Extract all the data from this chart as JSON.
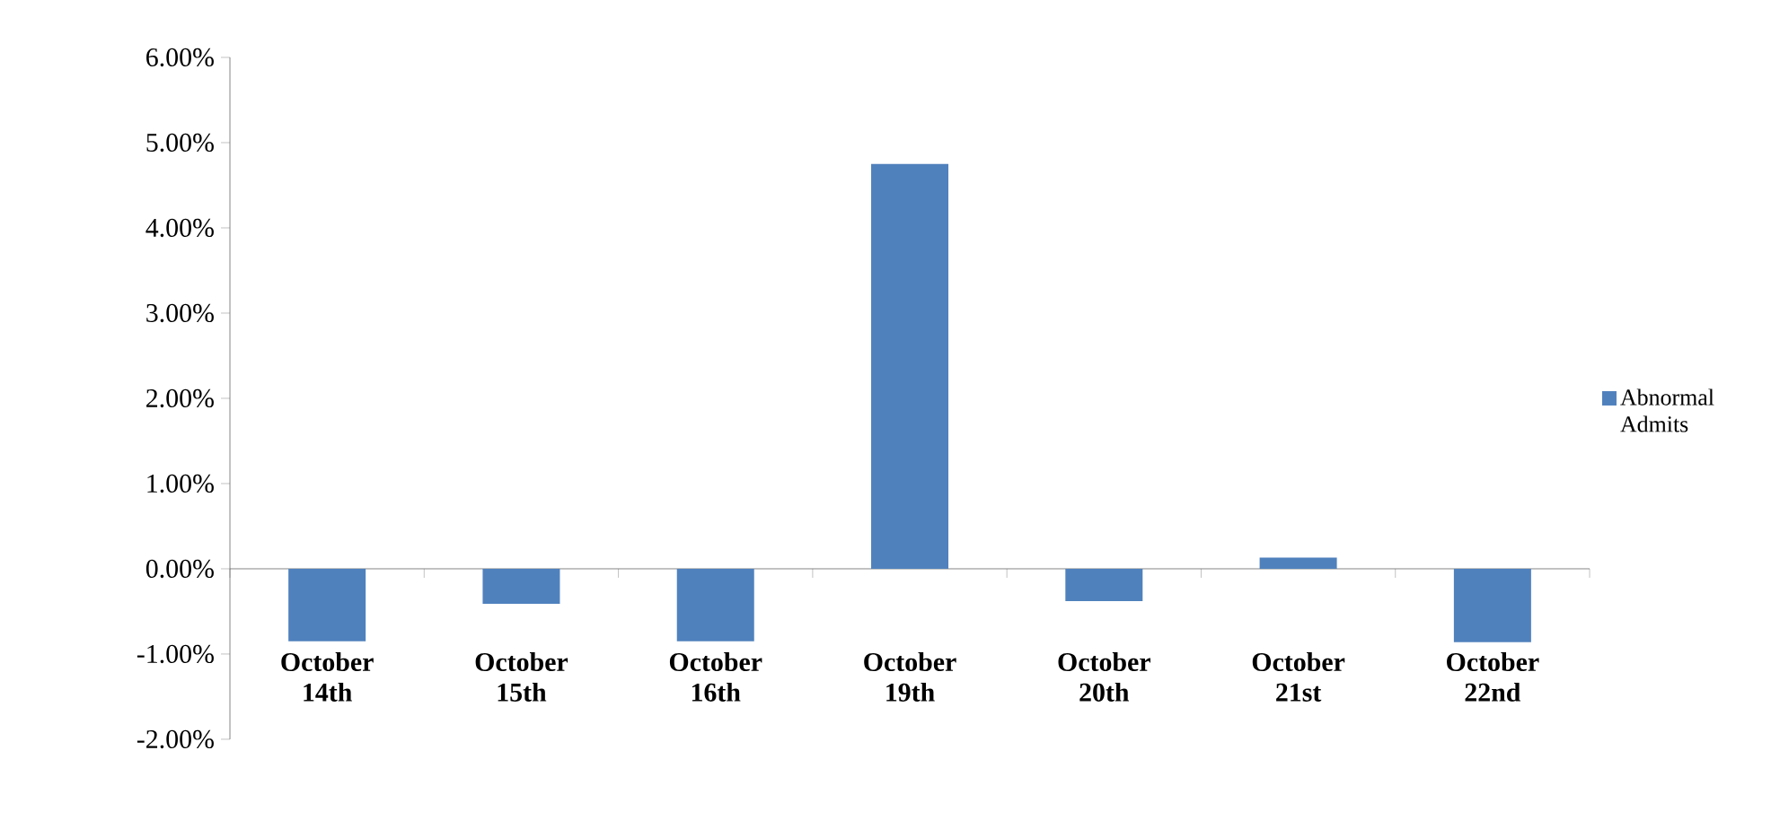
{
  "chart_data": {
    "type": "bar",
    "categories": [
      "October 14th",
      "October 15th",
      "October 16th",
      "October 19th",
      "October 20th",
      "October 21st",
      "October 22nd"
    ],
    "series": [
      {
        "name": "Abnormal Admits",
        "color": "#4f81bd",
        "values": [
          -0.85,
          -0.41,
          -0.85,
          4.75,
          -0.38,
          0.13,
          -0.86
        ]
      }
    ],
    "ylim": [
      -2,
      6
    ],
    "yticks": [
      {
        "value": -2,
        "label": "-2.00%"
      },
      {
        "value": -1,
        "label": "-1.00%"
      },
      {
        "value": 0,
        "label": "0.00%"
      },
      {
        "value": 1,
        "label": "1.00%"
      },
      {
        "value": 2,
        "label": "2.00%"
      },
      {
        "value": 3,
        "label": "3.00%"
      },
      {
        "value": 4,
        "label": "4.00%"
      },
      {
        "value": 5,
        "label": "5.00%"
      },
      {
        "value": 6,
        "label": "6.00%"
      }
    ],
    "legend": "right"
  }
}
